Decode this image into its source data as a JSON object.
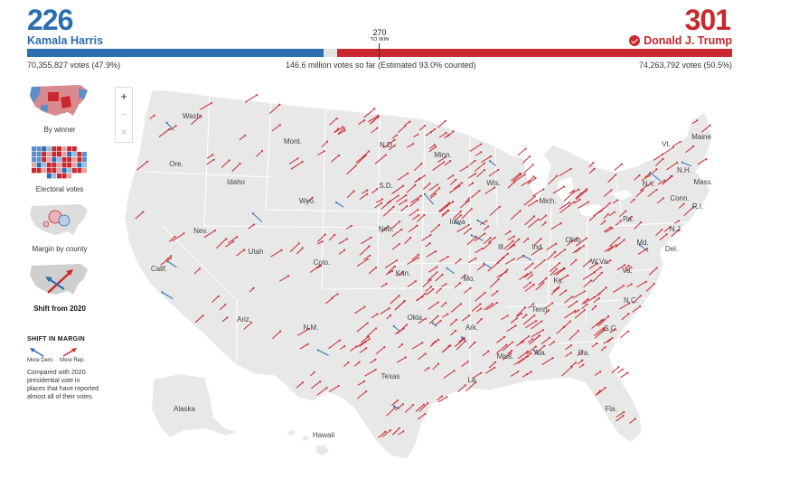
{
  "header": {
    "harris": {
      "electoral_votes": "226",
      "name": "Kamala Harris",
      "popular_votes": "70,355,827 votes (47.9%)",
      "color": "#2a6db0"
    },
    "trump": {
      "electoral_votes": "301",
      "name": "Donald J. Trump",
      "popular_votes": "74,263,792 votes (50.5%)",
      "color": "#c8282e",
      "winner": true
    },
    "threshold": {
      "number": "270",
      "label": "TO WIN"
    },
    "total_votes": "146.6 million votes so far (Estimated 93.0% counted)"
  },
  "map_options": [
    {
      "label": "By winner",
      "active": false
    },
    {
      "label": "Electoral votes",
      "active": false
    },
    {
      "label": "Margin by county",
      "active": false
    },
    {
      "label": "Shift from 2020",
      "active": true
    }
  ],
  "legend": {
    "title": "SHIFT IN MARGIN",
    "dem_label": "More Dem.",
    "rep_label": "More Rep.",
    "note": "Compared with 2020 presidential vote in places that have reported almost all of their votes."
  },
  "zoom": {
    "in": "+",
    "out": "−",
    "reset": "×"
  },
  "states": {
    "wash": "Wash.",
    "mont": "Mont.",
    "nd": "N.D.",
    "minn": "Minn.",
    "ore": "Ore.",
    "idaho": "Idaho",
    "sd": "S.D.",
    "wis": "Wis.",
    "wyo": "Wyo.",
    "mich": "Mich.",
    "iowa": "Iowa",
    "neb": "Neb.",
    "nev": "Nev.",
    "utah": "Utah",
    "calif": "Calif.",
    "colo": "Colo.",
    "ill": "Ill.",
    "ind": "Ind.",
    "ohio": "Ohio",
    "kan": "Kan.",
    "mo": "Mo.",
    "ky": "Ky.",
    "wva": "W.Va.",
    "va": "Va.",
    "nc": "N.C.",
    "tenn": "Tenn.",
    "ariz": "Ariz.",
    "nm": "N.M.",
    "okla": "Okla.",
    "ark": "Ark.",
    "sc": "S.C.",
    "miss": "Miss.",
    "ala": "Ala.",
    "ga": "Ga.",
    "la": "La.",
    "texas": "Texas",
    "fla": "Fla.",
    "alaska": "Alaska",
    "hawaii": "Hawaii",
    "maine": "Maine",
    "vt": "Vt.",
    "nh": "N.H.",
    "ny": "N.Y.",
    "mass": "Mass.",
    "conn": "Conn.",
    "ri": "R.I.",
    "pa": "Pa.",
    "nj": "N.J.",
    "md": "Md.",
    "del": "Del."
  },
  "colors": {
    "dem": "#2a6db0",
    "rep": "#c8282e",
    "land": "#e8e8e8",
    "border": "#ffffff"
  }
}
